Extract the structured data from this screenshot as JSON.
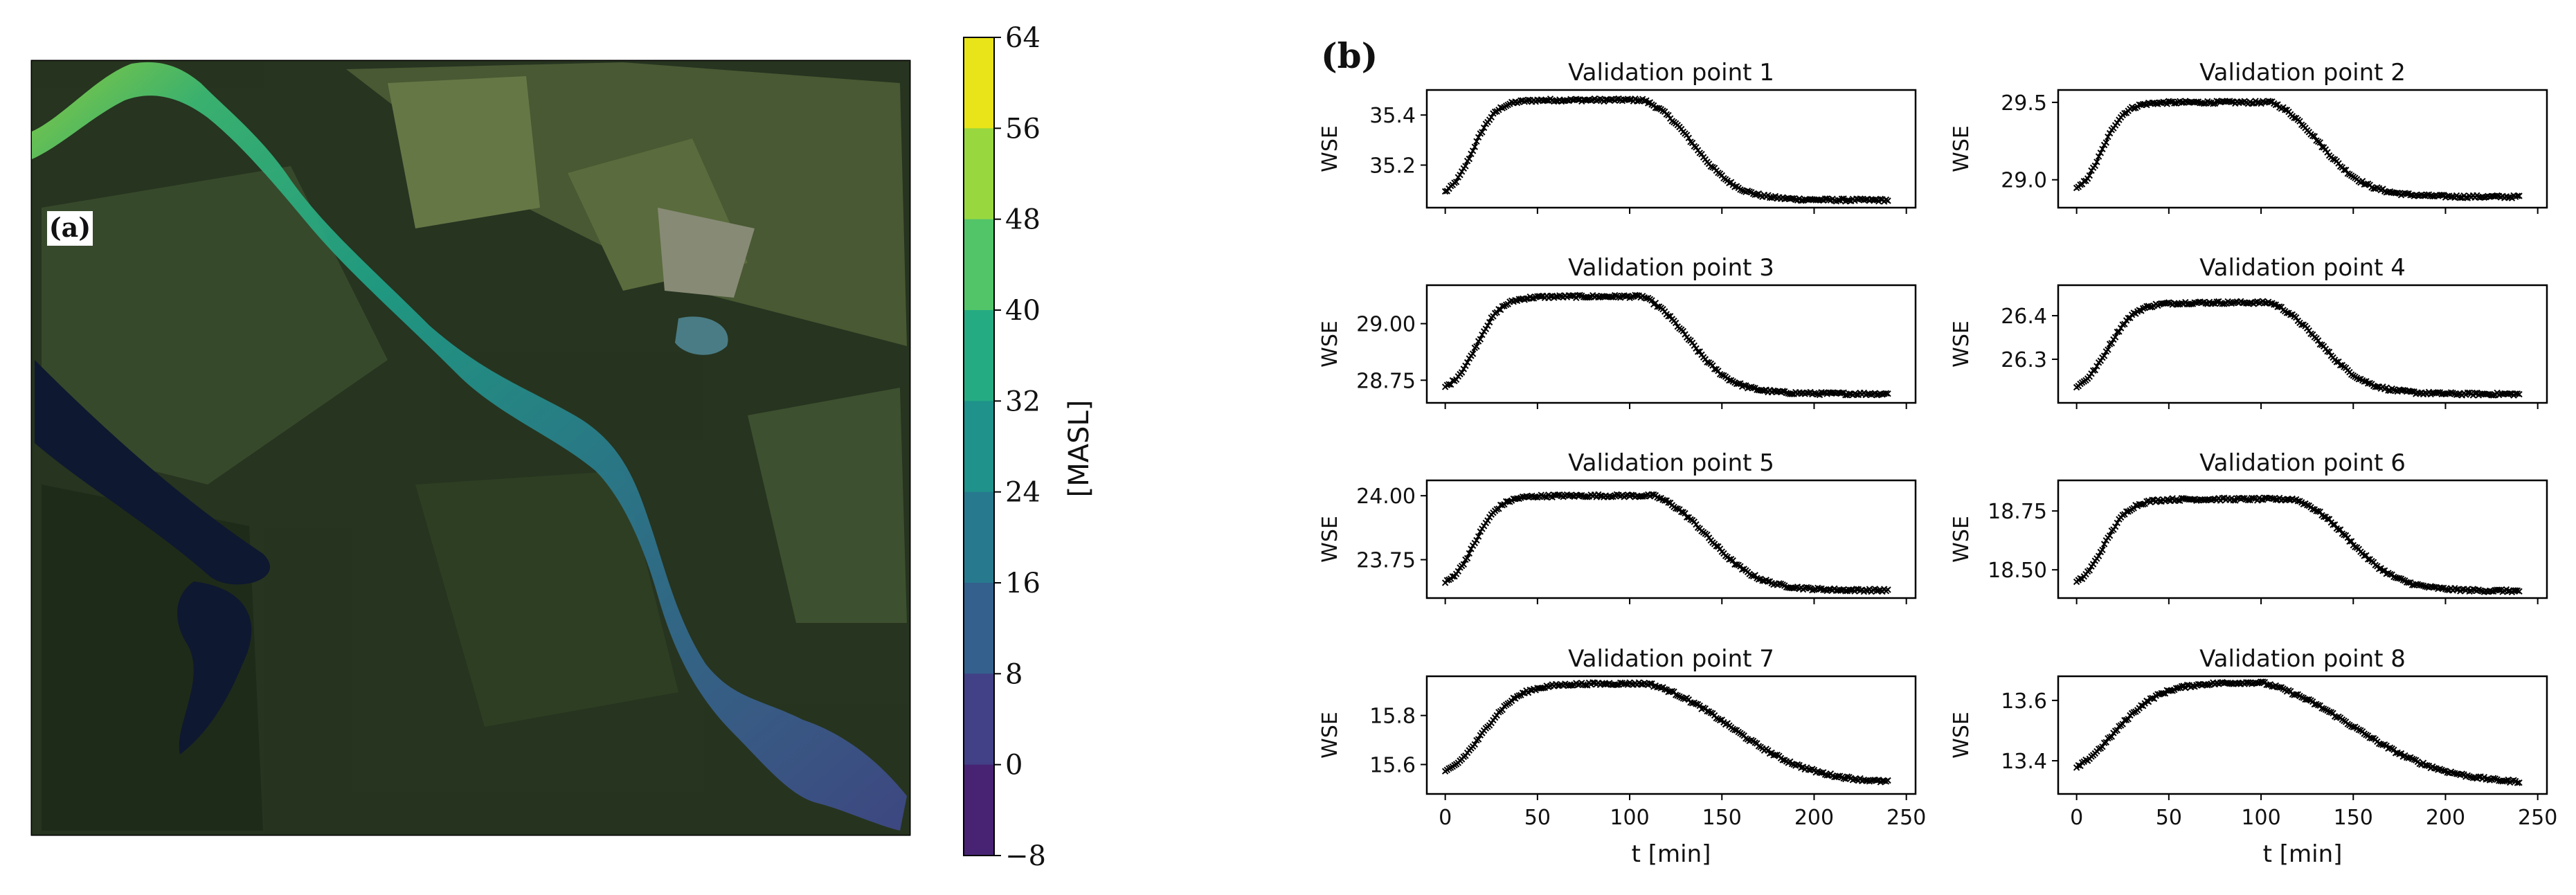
{
  "map_panel": {
    "label": "(a)",
    "colorbar": {
      "label": "[MASL]",
      "ticks": [
        "64",
        "56",
        "48",
        "40",
        "32",
        "24",
        "16",
        "8",
        "0",
        "−8"
      ],
      "colors": [
        "#e8e419",
        "#98d83e",
        "#52c569",
        "#25ab82",
        "#1f928c",
        "#277a8e",
        "#34608d",
        "#424086",
        "#482374"
      ]
    }
  },
  "chart_panel": {
    "label": "(b)"
  },
  "chart_data": [
    {
      "type": "line",
      "title": "Validation point 1",
      "ylabel": "WSE",
      "xlabel": "",
      "x_range": [
        0,
        240
      ],
      "xlim": [
        -10,
        255
      ],
      "ylim": [
        35.03,
        35.5
      ],
      "yticks": [
        "35.4",
        "35.2"
      ],
      "ytick_values": [
        35.4,
        35.2
      ],
      "baseline": 35.06,
      "plateau": 35.46,
      "rise_mid": 15,
      "rise_k": 0.16,
      "fall_start": 107,
      "fall_mid": 135,
      "fall_k": 0.085,
      "xticks": [
        "0",
        "50",
        "100",
        "150",
        "200",
        "250"
      ],
      "xtick_values": [
        0,
        50,
        100,
        150,
        200,
        250
      ]
    },
    {
      "type": "line",
      "title": "Validation point 2",
      "ylabel": "WSE",
      "xlabel": "",
      "x_range": [
        0,
        240
      ],
      "xlim": [
        -10,
        255
      ],
      "ylim": [
        28.82,
        29.58
      ],
      "yticks": [
        "29.5",
        "29.0"
      ],
      "ytick_values": [
        29.5,
        29.0
      ],
      "baseline": 28.89,
      "plateau": 29.5,
      "rise_mid": 14,
      "rise_k": 0.17,
      "fall_start": 106,
      "fall_mid": 132,
      "fall_k": 0.08,
      "xticks": [
        "0",
        "50",
        "100",
        "150",
        "200",
        "250"
      ],
      "xtick_values": [
        0,
        50,
        100,
        150,
        200,
        250
      ]
    },
    {
      "type": "line",
      "title": "Validation point 3",
      "ylabel": "WSE",
      "xlabel": "",
      "x_range": [
        0,
        240
      ],
      "xlim": [
        -10,
        255
      ],
      "ylim": [
        28.65,
        29.17
      ],
      "yticks": [
        "29.00",
        "28.75"
      ],
      "ytick_values": [
        29.0,
        28.75
      ],
      "baseline": 28.69,
      "plateau": 29.12,
      "rise_mid": 17,
      "rise_k": 0.15,
      "fall_start": 107,
      "fall_mid": 132,
      "fall_k": 0.085,
      "xticks": [
        "0",
        "50",
        "100",
        "150",
        "200",
        "250"
      ],
      "xtick_values": [
        0,
        50,
        100,
        150,
        200,
        250
      ]
    },
    {
      "type": "line",
      "title": "Validation point 4",
      "ylabel": "WSE",
      "xlabel": "",
      "x_range": [
        0,
        240
      ],
      "xlim": [
        -10,
        255
      ],
      "ylim": [
        26.2,
        26.47
      ],
      "yticks": [
        "26.4",
        "26.3"
      ],
      "ytick_values": [
        26.4,
        26.3
      ],
      "baseline": 26.22,
      "plateau": 26.43,
      "rise_mid": 17,
      "rise_k": 0.14,
      "fall_start": 105,
      "fall_mid": 132,
      "fall_k": 0.08,
      "xticks": [
        "0",
        "50",
        "100",
        "150",
        "200",
        "250"
      ],
      "xtick_values": [
        0,
        50,
        100,
        150,
        200,
        250
      ]
    },
    {
      "type": "line",
      "title": "Validation point 5",
      "ylabel": "WSE",
      "xlabel": "",
      "x_range": [
        0,
        240
      ],
      "xlim": [
        -10,
        255
      ],
      "ylim": [
        23.6,
        24.06
      ],
      "yticks": [
        "24.00",
        "23.75"
      ],
      "ytick_values": [
        24.0,
        23.75
      ],
      "baseline": 23.63,
      "plateau": 24.0,
      "rise_mid": 16,
      "rise_k": 0.15,
      "fall_start": 113,
      "fall_mid": 143,
      "fall_k": 0.075,
      "xticks": [
        "0",
        "50",
        "100",
        "150",
        "200",
        "250"
      ],
      "xtick_values": [
        0,
        50,
        100,
        150,
        200,
        250
      ]
    },
    {
      "type": "line",
      "title": "Validation point 6",
      "ylabel": "WSE",
      "xlabel": "",
      "x_range": [
        0,
        240
      ],
      "xlim": [
        -10,
        255
      ],
      "ylim": [
        18.38,
        18.88
      ],
      "yticks": [
        "18.75",
        "18.50"
      ],
      "ytick_values": [
        18.75,
        18.5
      ],
      "baseline": 18.41,
      "plateau": 18.8,
      "rise_mid": 15,
      "rise_k": 0.15,
      "fall_start": 118,
      "fall_mid": 148,
      "fall_k": 0.075,
      "xticks": [
        "0",
        "50",
        "100",
        "150",
        "200",
        "250"
      ],
      "xtick_values": [
        0,
        50,
        100,
        150,
        200,
        250
      ]
    },
    {
      "type": "line",
      "title": "Validation point 7",
      "ylabel": "WSE",
      "xlabel": "t [min]",
      "x_range": [
        0,
        240
      ],
      "xlim": [
        -10,
        255
      ],
      "ylim": [
        15.48,
        15.96
      ],
      "yticks": [
        "15.8",
        "15.6"
      ],
      "ytick_values": [
        15.8,
        15.6
      ],
      "baseline": 15.52,
      "plateau": 15.93,
      "rise_mid": 20,
      "rise_k": 0.1,
      "fall_start": 110,
      "fall_mid": 155,
      "fall_k": 0.045,
      "xticks": [
        "0",
        "50",
        "100",
        "150",
        "200",
        "250"
      ],
      "xtick_values": [
        0,
        50,
        100,
        150,
        200,
        250
      ]
    },
    {
      "type": "line",
      "title": "Validation point 8",
      "ylabel": "WSE",
      "xlabel": "t [min]",
      "x_range": [
        0,
        240
      ],
      "xlim": [
        -10,
        255
      ],
      "ylim": [
        13.29,
        13.68
      ],
      "yticks": [
        "13.6",
        "13.4"
      ],
      "ytick_values": [
        13.6,
        13.4
      ],
      "baseline": 13.32,
      "plateau": 13.66,
      "rise_mid": 20,
      "rise_k": 0.08,
      "fall_start": 100,
      "fall_mid": 150,
      "fall_k": 0.04,
      "xticks": [
        "0",
        "50",
        "100",
        "150",
        "200",
        "250"
      ],
      "xtick_values": [
        0,
        50,
        100,
        150,
        200,
        250
      ]
    }
  ]
}
